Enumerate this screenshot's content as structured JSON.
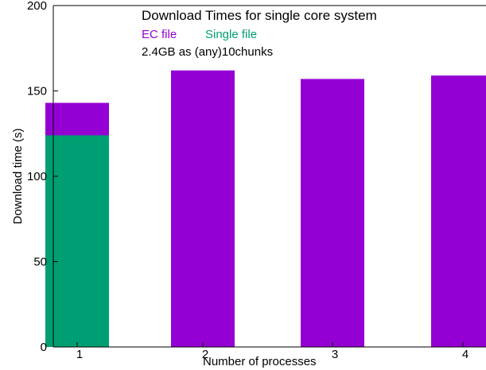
{
  "chart_data": {
    "type": "bar",
    "title": "Download Times for single core system",
    "subtitle": "2.4GB as (any)10chunks",
    "xlabel": "Number of processes",
    "ylabel": "Download time (s)",
    "categories": [
      "1",
      "2",
      "3",
      "4"
    ],
    "ylim": [
      0,
      200
    ],
    "yticks": [
      "0",
      "50",
      "100",
      "150",
      "200"
    ],
    "grid": false,
    "legend_position": "top-center",
    "series": [
      {
        "name": "EC file",
        "color": "#9400D3",
        "values": [
          143,
          162,
          157,
          159
        ]
      },
      {
        "name": "Single file",
        "color": "#009E73",
        "values": [
          124,
          null,
          null,
          null
        ]
      }
    ]
  }
}
